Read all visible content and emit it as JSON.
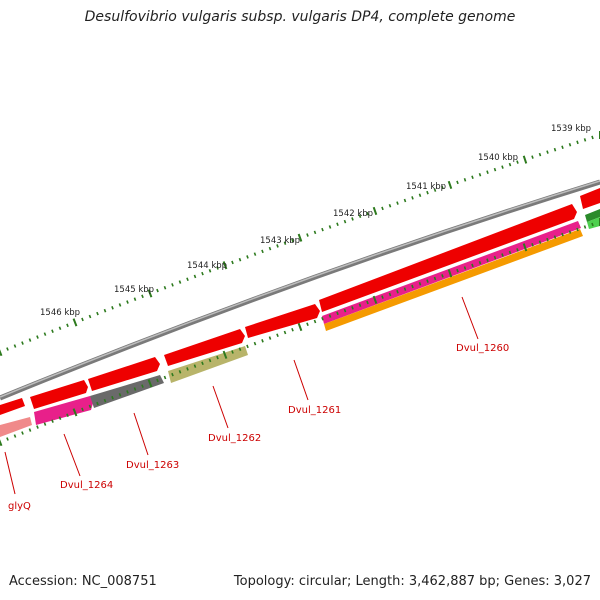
{
  "title": "Desulfovibrio vulgaris subsp. vulgaris DP4, complete genome",
  "footer": {
    "accession": "Accession: NC_008751",
    "summary": "Topology: circular; Length: 3,462,887 bp; Genes: 3,027"
  },
  "scale_labels": [
    "1539 kbp",
    "1540 kbp",
    "1541 kbp",
    "1542 kbp",
    "1543 kbp",
    "1544 kbp",
    "1545 kbp",
    "1546 kbp"
  ],
  "gene_labels": [
    "Dvul_1260",
    "Dvul_1261",
    "Dvul_1262",
    "Dvul_1263",
    "Dvul_1264",
    "glyQ"
  ],
  "colors": {
    "backbone": "#7a7a7a",
    "gene": "#ee0000",
    "label": "#cc0000",
    "tick": "#2d7a1e",
    "magenta": "#e8208a",
    "orange": "#f59a00",
    "olive": "#b8b46a",
    "gray": "#6a6a6a",
    "pink": "#f08a8a",
    "green": "#2aa02a"
  }
}
